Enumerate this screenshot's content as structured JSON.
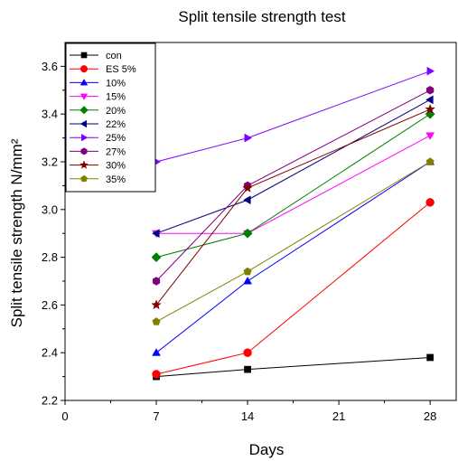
{
  "chart_data": {
    "type": "line",
    "title": "Split tensile strength test",
    "xlabel": "Days",
    "ylabel": "Split tensile strength N/mm²",
    "xlim": [
      0,
      30
    ],
    "ylim": [
      2.2,
      3.7
    ],
    "x_ticks": [
      0,
      7,
      14,
      21,
      28
    ],
    "y_ticks": [
      2.2,
      2.4,
      2.6,
      2.8,
      3.0,
      3.2,
      3.4,
      3.6
    ],
    "x": [
      7,
      14,
      28
    ],
    "grid": false,
    "legend_position": "top-left",
    "series": [
      {
        "name": "con",
        "color": "#000000",
        "marker": "square",
        "values": [
          2.3,
          2.33,
          2.38
        ]
      },
      {
        "name": "ES 5%",
        "color": "#ff0000",
        "marker": "circle",
        "values": [
          2.31,
          2.4,
          3.03
        ]
      },
      {
        "name": "10%",
        "color": "#0000ff",
        "marker": "triangle-up",
        "values": [
          2.4,
          2.7,
          3.2
        ]
      },
      {
        "name": "15%",
        "color": "#ff00ff",
        "marker": "triangle-down",
        "values": [
          2.9,
          2.9,
          3.31
        ]
      },
      {
        "name": "20%",
        "color": "#008000",
        "marker": "diamond",
        "values": [
          2.8,
          2.9,
          3.4
        ]
      },
      {
        "name": "22%",
        "color": "#000080",
        "marker": "triangle-left",
        "values": [
          2.9,
          3.04,
          3.46
        ]
      },
      {
        "name": "25%",
        "color": "#8000ff",
        "marker": "triangle-right",
        "values": [
          3.2,
          3.3,
          3.58
        ]
      },
      {
        "name": "27%",
        "color": "#800080",
        "marker": "hexagon",
        "values": [
          2.7,
          3.1,
          3.5
        ]
      },
      {
        "name": "30%",
        "color": "#800000",
        "marker": "star",
        "values": [
          2.6,
          3.09,
          3.42
        ]
      },
      {
        "name": "35%",
        "color": "#808000",
        "marker": "pentagon",
        "values": [
          2.53,
          2.74,
          3.2
        ]
      }
    ]
  }
}
